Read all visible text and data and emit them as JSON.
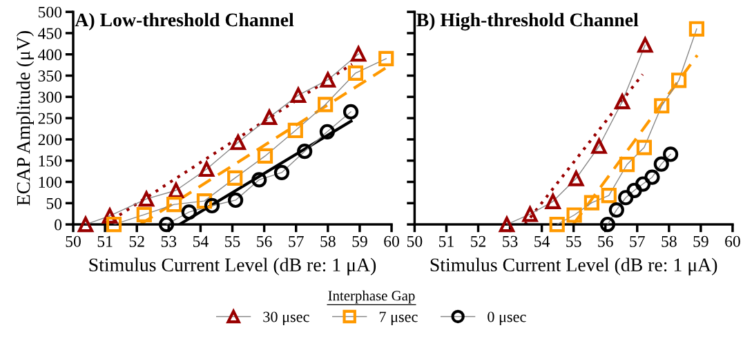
{
  "chart_data": [
    {
      "type": "line",
      "title": "A) Low-threshold Channel",
      "xlabel": "Stimulus Current Level (dB re: 1 μA)",
      "ylabel": "ECAP Amplitude (μV)",
      "legend_title": "Interphase Gap",
      "legend": "bottom",
      "grid": false,
      "xlim": [
        50,
        60
      ],
      "xticks": [
        50,
        51,
        52,
        53,
        54,
        55,
        56,
        57,
        58,
        59,
        60
      ],
      "ylim": [
        0,
        500
      ],
      "yticks": [
        0,
        50,
        100,
        150,
        200,
        250,
        300,
        350,
        400,
        450,
        500
      ],
      "series": [
        {
          "name": "30 μsec",
          "color": "#990000",
          "marker": "triangle",
          "x": [
            50.39,
            51.15,
            52.3,
            53.23,
            54.19,
            55.18,
            56.16,
            57.07,
            58.0,
            58.96
          ],
          "values": [
            0,
            20,
            60,
            80,
            130,
            193,
            252,
            304,
            340,
            401
          ]
        },
        {
          "name": "7 μsec",
          "color": "#ff9900",
          "marker": "square",
          "x": [
            51.28,
            52.23,
            53.17,
            54.12,
            55.08,
            56.03,
            56.98,
            57.92,
            58.87,
            59.83
          ],
          "values": [
            0,
            23,
            47,
            55,
            109,
            161,
            221,
            282,
            356,
            390
          ]
        },
        {
          "name": "0 μsec",
          "color": "#000000",
          "marker": "circle",
          "x": [
            52.93,
            53.64,
            54.36,
            55.1,
            55.84,
            56.55,
            57.27,
            57.98,
            58.72
          ],
          "values": [
            0,
            29,
            44,
            57,
            105,
            122,
            172,
            218,
            265
          ]
        },
        {
          "color": "#990000",
          "marker": "none",
          "line_style": "dotted",
          "x": [
            51.0,
            58.76
          ],
          "values": [
            0,
            377
          ]
        },
        {
          "color": "#ff9900",
          "marker": "none",
          "line_style": "dashed",
          "x": [
            52.11,
            59.92
          ],
          "values": [
            0,
            373
          ]
        },
        {
          "color": "#000000",
          "marker": "none",
          "line_style": "solid",
          "x": [
            53.34,
            58.73
          ],
          "values": [
            0,
            243
          ]
        }
      ]
    },
    {
      "type": "line",
      "title": "B) High-threshold Channel",
      "xlabel": "Stimulus Current Level (dB re: 1 μA)",
      "grid": false,
      "tick_labels": "x",
      "xlim": [
        50,
        60
      ],
      "xticks": [
        50,
        51,
        52,
        53,
        54,
        55,
        56,
        57,
        58,
        59,
        60
      ],
      "ylim": [
        0,
        500
      ],
      "yticks": [
        0,
        50,
        100,
        150,
        200,
        250,
        300,
        350,
        400,
        450,
        500
      ],
      "series": [
        {
          "color": "#990000",
          "marker": "triangle",
          "x": [
            52.9,
            53.63,
            54.35,
            55.08,
            55.8,
            56.53,
            57.25
          ],
          "values": [
            0,
            24,
            54,
            108,
            184,
            289,
            422
          ]
        },
        {
          "color": "#ff9900",
          "marker": "square",
          "x": [
            54.48,
            55.02,
            55.57,
            56.11,
            56.68,
            57.22,
            57.77,
            58.31,
            58.87
          ],
          "values": [
            0,
            22,
            51,
            68,
            141,
            181,
            279,
            339,
            460
          ]
        },
        {
          "color": "#000000",
          "marker": "circle",
          "x": [
            56.07,
            56.35,
            56.64,
            56.91,
            57.18,
            57.47,
            57.76,
            58.05
          ],
          "values": [
            0,
            34,
            63,
            80,
            95,
            111,
            142,
            165
          ]
        },
        {
          "color": "#990000",
          "marker": "none",
          "line_style": "dotted",
          "x": [
            53.47,
            57.17
          ],
          "values": [
            0,
            353
          ]
        },
        {
          "color": "#ff9900",
          "marker": "none",
          "line_style": "dashed",
          "x": [
            54.99,
            58.89
          ],
          "values": [
            0,
            398
          ]
        }
      ]
    }
  ]
}
